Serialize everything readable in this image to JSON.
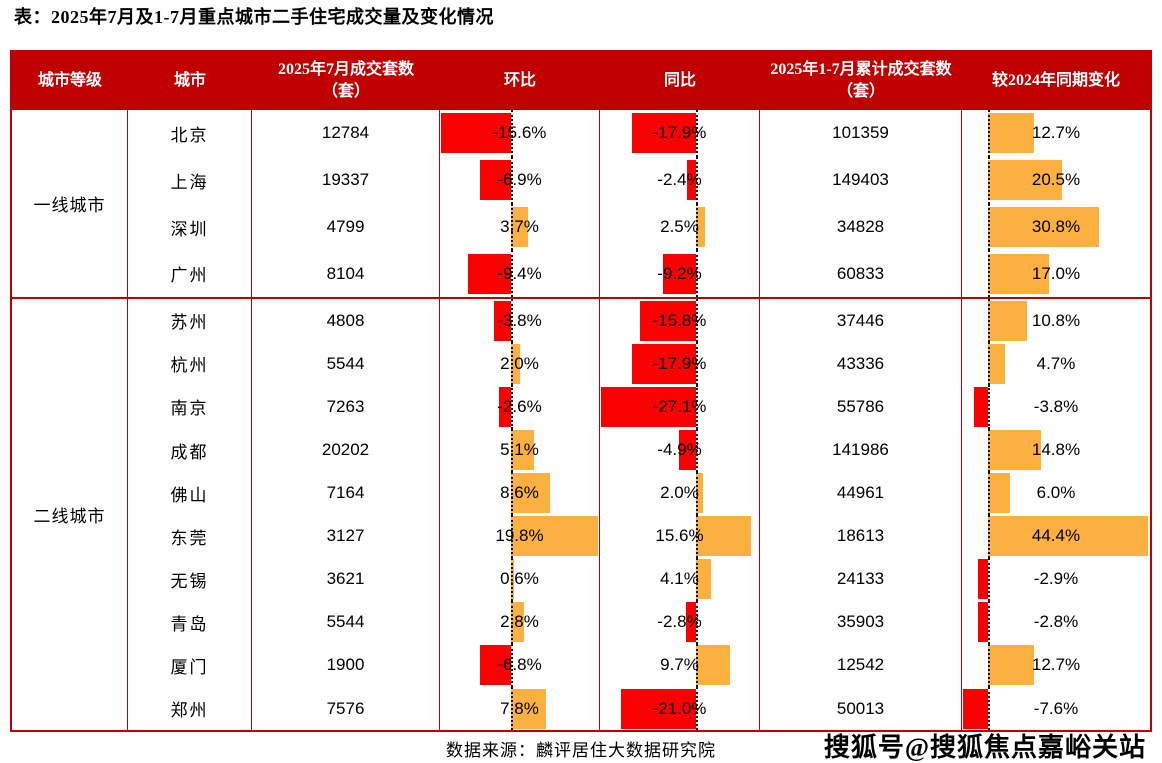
{
  "title": "表：2025年7月及1-7月重点城市二手住宅成交量及变化情况",
  "source": "数据来源：麟评居住大数据研究院",
  "watermark": "搜狐号@搜狐焦点嘉峪关站",
  "columns": [
    "城市等级",
    "城市",
    "2025年7月成交套数（套）",
    "环比",
    "同比",
    "2025年1-7月累计成交套数（套）",
    "较2024年同期变化"
  ],
  "colors": {
    "header_bg": "#c00000",
    "border": "#c00000",
    "bar_negative": "#fb0000",
    "bar_positive": "#fbb040",
    "baseline": "#111111"
  },
  "groups": [
    {
      "tier": "一线城市",
      "cities": [
        {
          "city": "北京",
          "jul": "12784",
          "mom_pct": -15.6,
          "mom_label": "-15.6%",
          "yoy_pct": -17.9,
          "yoy_label": "-17.9%",
          "cum": "101359",
          "chg_pct": 12.7,
          "chg_label": "12.7%"
        },
        {
          "city": "上海",
          "jul": "19337",
          "mom_pct": -6.9,
          "mom_label": "-6.9%",
          "yoy_pct": -2.4,
          "yoy_label": "-2.4%",
          "cum": "149403",
          "chg_pct": 20.5,
          "chg_label": "20.5%"
        },
        {
          "city": "深圳",
          "jul": "4799",
          "mom_pct": 3.7,
          "mom_label": "3.7%",
          "yoy_pct": 2.5,
          "yoy_label": "2.5%",
          "cum": "34828",
          "chg_pct": 30.8,
          "chg_label": "30.8%"
        },
        {
          "city": "广州",
          "jul": "8104",
          "mom_pct": -9.4,
          "mom_label": "-9.4%",
          "yoy_pct": -9.2,
          "yoy_label": "-9.2%",
          "cum": "60833",
          "chg_pct": 17.0,
          "chg_label": "17.0%"
        }
      ]
    },
    {
      "tier": "二线城市",
      "cities": [
        {
          "city": "苏州",
          "jul": "4808",
          "mom_pct": -3.8,
          "mom_label": "-3.8%",
          "yoy_pct": -15.8,
          "yoy_label": "-15.8%",
          "cum": "37446",
          "chg_pct": 10.8,
          "chg_label": "10.8%"
        },
        {
          "city": "杭州",
          "jul": "5544",
          "mom_pct": 2.0,
          "mom_label": "2.0%",
          "yoy_pct": -17.9,
          "yoy_label": "-17.9%",
          "cum": "43336",
          "chg_pct": 4.7,
          "chg_label": "4.7%"
        },
        {
          "city": "南京",
          "jul": "7263",
          "mom_pct": -2.6,
          "mom_label": "-2.6%",
          "yoy_pct": -27.1,
          "yoy_label": "-27.1%",
          "cum": "55786",
          "chg_pct": -3.8,
          "chg_label": "-3.8%"
        },
        {
          "city": "成都",
          "jul": "20202",
          "mom_pct": 5.1,
          "mom_label": "5.1%",
          "yoy_pct": -4.9,
          "yoy_label": "-4.9%",
          "cum": "141986",
          "chg_pct": 14.8,
          "chg_label": "14.8%"
        },
        {
          "city": "佛山",
          "jul": "7164",
          "mom_pct": 8.6,
          "mom_label": "8.6%",
          "yoy_pct": 2.0,
          "yoy_label": "2.0%",
          "cum": "44961",
          "chg_pct": 6.0,
          "chg_label": "6.0%"
        },
        {
          "city": "东莞",
          "jul": "3127",
          "mom_pct": 19.8,
          "mom_label": "19.8%",
          "yoy_pct": 15.6,
          "yoy_label": "15.6%",
          "cum": "18613",
          "chg_pct": 44.4,
          "chg_label": "44.4%"
        },
        {
          "city": "无锡",
          "jul": "3621",
          "mom_pct": 0.6,
          "mom_label": "0.6%",
          "yoy_pct": 4.1,
          "yoy_label": "4.1%",
          "cum": "24133",
          "chg_pct": -2.9,
          "chg_label": "-2.9%"
        },
        {
          "city": "青岛",
          "jul": "5544",
          "mom_pct": 2.8,
          "mom_label": "2.8%",
          "yoy_pct": -2.8,
          "yoy_label": "-2.8%",
          "cum": "35903",
          "chg_pct": -2.8,
          "chg_label": "-2.8%"
        },
        {
          "city": "厦门",
          "jul": "1900",
          "mom_pct": -6.8,
          "mom_label": "-6.8%",
          "yoy_pct": 9.7,
          "yoy_label": "9.7%",
          "cum": "12542",
          "chg_pct": 12.7,
          "chg_label": "12.7%"
        },
        {
          "city": "郑州",
          "jul": "7576",
          "mom_pct": 7.8,
          "mom_label": "7.8%",
          "yoy_pct": -21.0,
          "yoy_label": "-21.0%",
          "cum": "50013",
          "chg_pct": -7.6,
          "chg_label": "-7.6%"
        }
      ]
    }
  ],
  "chart_data": {
    "type": "table",
    "title": "表：2025年7月及1-7月重点城市二手住宅成交量及变化情况",
    "categories": [
      "北京",
      "上海",
      "深圳",
      "广州",
      "苏州",
      "杭州",
      "南京",
      "成都",
      "佛山",
      "东莞",
      "无锡",
      "青岛",
      "厦门",
      "郑州"
    ],
    "group_of_category": [
      "一线城市",
      "一线城市",
      "一线城市",
      "一线城市",
      "二线城市",
      "二线城市",
      "二线城市",
      "二线城市",
      "二线城市",
      "二线城市",
      "二线城市",
      "二线城市",
      "二线城市",
      "二线城市"
    ],
    "series": [
      {
        "name": "2025年7月成交套数（套）",
        "values": [
          12784,
          19337,
          4799,
          8104,
          4808,
          5544,
          7263,
          20202,
          7164,
          3127,
          3621,
          5544,
          1900,
          7576
        ]
      },
      {
        "name": "环比",
        "unit": "%",
        "type": "bar",
        "values": [
          -15.6,
          -6.9,
          3.7,
          -9.4,
          -3.8,
          2.0,
          -2.6,
          5.1,
          8.6,
          19.8,
          0.6,
          2.8,
          -6.8,
          7.8
        ]
      },
      {
        "name": "同比",
        "unit": "%",
        "type": "bar",
        "values": [
          -17.9,
          -2.4,
          2.5,
          -9.2,
          -15.8,
          -17.9,
          -27.1,
          -4.9,
          2.0,
          15.6,
          4.1,
          -2.8,
          9.7,
          -21.0
        ]
      },
      {
        "name": "2025年1-7月累计成交套数（套）",
        "values": [
          101359,
          149403,
          34828,
          60833,
          37446,
          43336,
          55786,
          141986,
          44961,
          18613,
          24133,
          35903,
          12542,
          50013
        ]
      },
      {
        "name": "较2024年同期变化",
        "unit": "%",
        "type": "bar",
        "values": [
          12.7,
          20.5,
          30.8,
          17.0,
          10.8,
          4.7,
          -3.8,
          14.8,
          6.0,
          44.4,
          -2.9,
          -2.8,
          12.7,
          -7.6
        ]
      }
    ],
    "layout": {
      "bar_positive_color": "#fbb040",
      "bar_negative_color": "#fb0000",
      "baseline": "dotted"
    }
  }
}
